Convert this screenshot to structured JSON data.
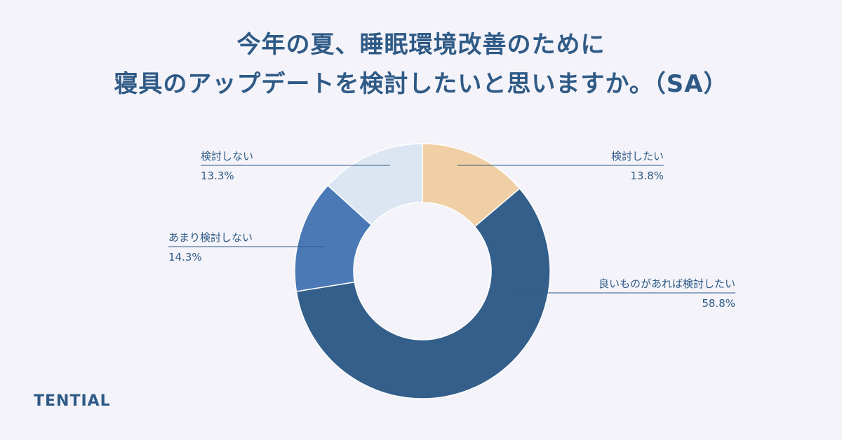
{
  "title": {
    "line1": "今年の夏、睡眠環境改善のために",
    "line2": "寝具のアップデートを検討したいと思いますか。（SA）"
  },
  "brand": "TENTIAL",
  "chart_data": {
    "type": "pie",
    "variant": "donut",
    "slices": [
      {
        "label": "検討したい",
        "value": 13.8,
        "value_label": "13.8%",
        "color": "#efcfa3"
      },
      {
        "label": "良いものがあれば検討したい",
        "value": 58.8,
        "value_label": "58.8%",
        "color": "#345f8a"
      },
      {
        "label": "あまり検討しない",
        "value": 14.3,
        "value_label": "14.3%",
        "color": "#4a79b6"
      },
      {
        "label": "検討しない",
        "value": 13.3,
        "value_label": "13.3%",
        "color": "#dce6f3"
      }
    ],
    "start_angle_deg": 0,
    "direction": "clockwise",
    "label_color": "#2f5a86"
  }
}
